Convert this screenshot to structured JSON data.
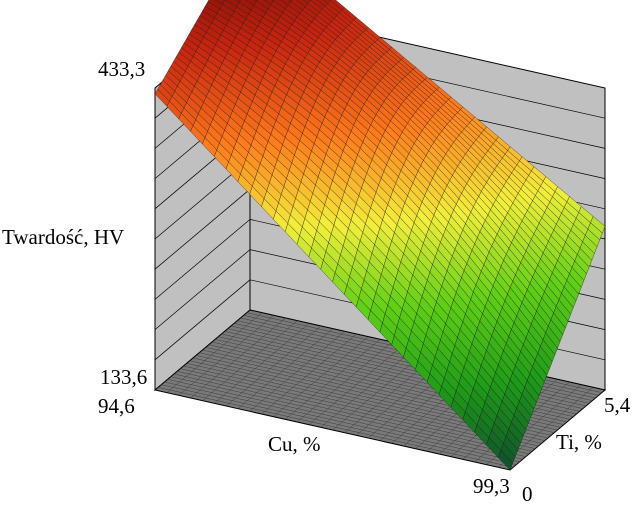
{
  "chart_data": {
    "type": "surface",
    "z_label": "Twardość, HV",
    "x_label": "Cu, %",
    "y_label": "Ti, %",
    "z_ticks": [
      "133,6",
      "433,3"
    ],
    "x_ticks": [
      "94,6",
      "99,3"
    ],
    "y_ticks": [
      "0",
      "5,4"
    ],
    "zlim": [
      133.6,
      433.3
    ],
    "xlim": [
      94.6,
      99.3
    ],
    "ylim": [
      0,
      5.4
    ],
    "corner_values": [
      {
        "cu": 94.6,
        "ti": 5.4,
        "hv": 433.3
      },
      {
        "cu": 94.6,
        "ti": 0,
        "hv": 366
      },
      {
        "cu": 99.3,
        "ti": 5.4,
        "hv": 262
      },
      {
        "cu": 99.3,
        "ti": 0,
        "hv": 133.6
      }
    ],
    "colormap": [
      "#0f4d2c",
      "#1f9d18",
      "#60d015",
      "#f3ef3a",
      "#ff7a1b",
      "#c8240f",
      "#5a0000"
    ],
    "floor_color": "#7a7a7a",
    "wall_color": "#c0c0c0"
  }
}
